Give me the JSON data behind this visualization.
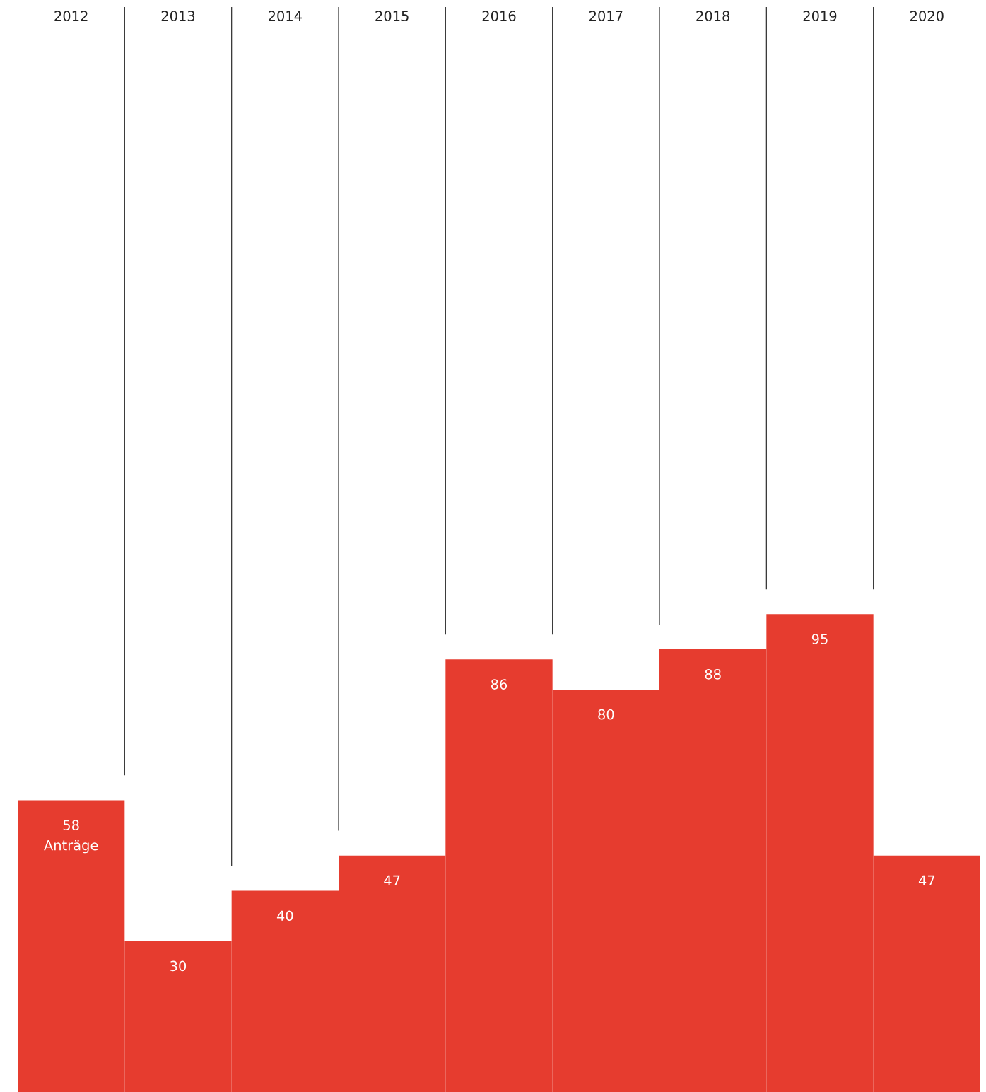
{
  "chart_data": {
    "type": "bar",
    "categories": [
      "2012",
      "2013",
      "2014",
      "2015",
      "2016",
      "2017",
      "2018",
      "2019",
      "2020"
    ],
    "values": [
      58,
      30,
      40,
      47,
      86,
      80,
      88,
      95,
      47
    ],
    "color": "#e63c2f",
    "data_labels": true,
    "grid": "x",
    "annotations": [
      {
        "text": "Anträge",
        "x": "2012",
        "y": 58
      }
    ]
  }
}
